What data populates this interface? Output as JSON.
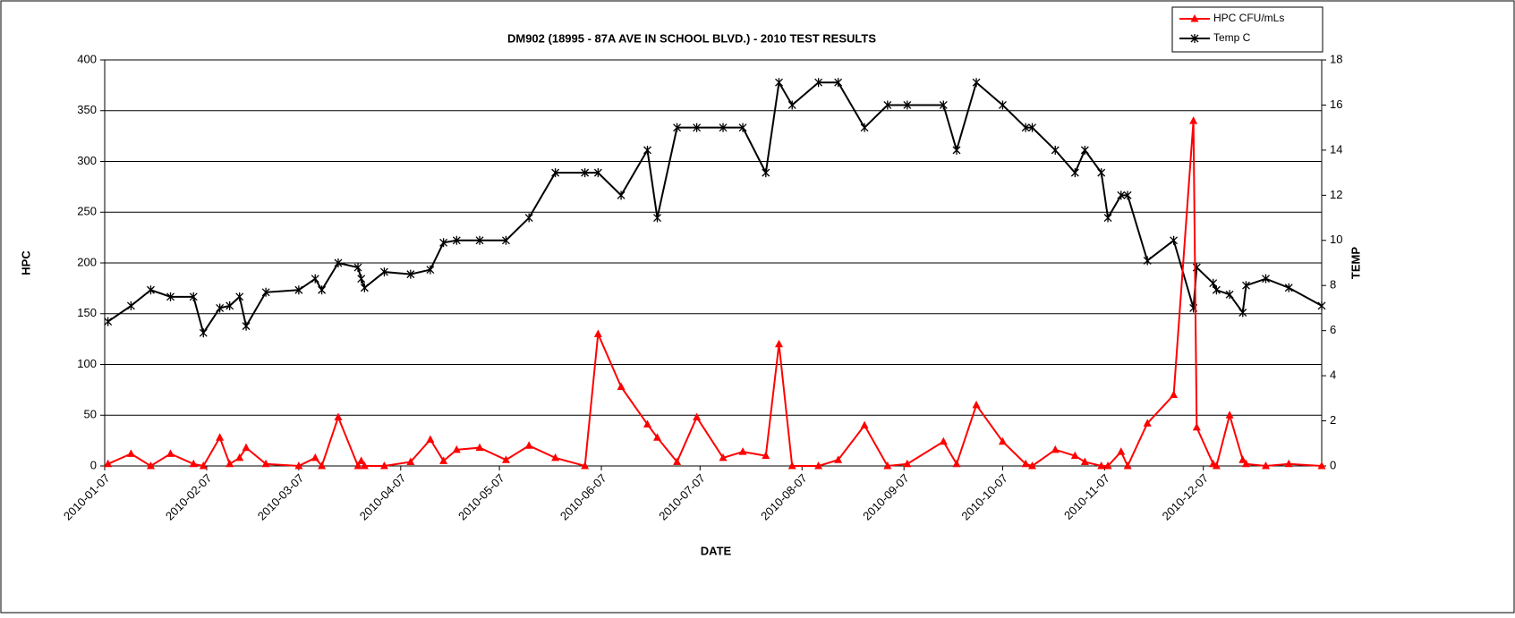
{
  "chart_data": {
    "type": "line",
    "title": "DM902 (18995 - 87A AVE IN SCHOOL BLVD.) - 2010 TEST RESULTS",
    "xlabel": "DATE",
    "ylabel": "HPC",
    "y2label": "TEMP",
    "x": [
      "2010-01-08",
      "2010-01-15",
      "2010-01-21",
      "2010-01-27",
      "2010-02-03",
      "2010-02-06",
      "2010-02-11",
      "2010-02-14",
      "2010-02-17",
      "2010-02-19",
      "2010-02-25",
      "2010-03-07",
      "2010-03-12",
      "2010-03-14",
      "2010-03-19",
      "2010-03-25",
      "2010-03-26",
      "2010-03-27",
      "2010-04-02",
      "2010-04-10",
      "2010-04-16",
      "2010-04-20",
      "2010-04-24",
      "2010-05-01",
      "2010-05-09",
      "2010-05-16",
      "2010-05-24",
      "2010-06-02",
      "2010-06-06",
      "2010-06-13",
      "2010-06-21",
      "2010-06-24",
      "2010-06-30",
      "2010-07-06",
      "2010-07-14",
      "2010-07-20",
      "2010-07-27",
      "2010-07-31",
      "2010-08-04",
      "2010-08-12",
      "2010-08-18",
      "2010-08-26",
      "2010-09-02",
      "2010-09-08",
      "2010-09-19",
      "2010-09-23",
      "2010-09-29",
      "2010-10-07",
      "2010-10-14",
      "2010-10-16",
      "2010-10-23",
      "2010-10-29",
      "2010-11-01",
      "2010-11-06",
      "2010-11-08",
      "2010-11-12",
      "2010-11-14",
      "2010-11-20",
      "2010-11-28",
      "2010-12-04",
      "2010-12-05",
      "2010-12-10",
      "2010-12-11",
      "2010-12-15",
      "2010-12-19",
      "2010-12-20",
      "2010-12-26",
      "2011-01-02",
      "2011-01-12"
    ],
    "series": [
      {
        "name": "HPC CFU/mLs",
        "color": "#ff0000",
        "marker": "triangle",
        "values": [
          2,
          12,
          0,
          12,
          2,
          0,
          28,
          2,
          8,
          18,
          2,
          0,
          8,
          0,
          48,
          0,
          5,
          0,
          0,
          4,
          26,
          5,
          16,
          18,
          6,
          20,
          8,
          0,
          130,
          78,
          41,
          28,
          4,
          48,
          8,
          14,
          10,
          120,
          0,
          0,
          6,
          40,
          0,
          2,
          24,
          2,
          60,
          24,
          2,
          0,
          16,
          10,
          4,
          0,
          0,
          14,
          0,
          42,
          70,
          340,
          38,
          2,
          0,
          50,
          6,
          2,
          0,
          2,
          0
        ]
      },
      {
        "name": "Temp C",
        "color": "#000000",
        "marker": "star",
        "axis": "y2",
        "values": [
          6.4,
          7.1,
          7.8,
          7.5,
          7.5,
          5.9,
          7,
          7.1,
          7.5,
          6.2,
          7.7,
          7.8,
          8.3,
          7.8,
          9,
          8.8,
          8.3,
          7.9,
          8.6,
          8.5,
          8.7,
          9.9,
          10,
          10,
          10,
          11,
          13,
          13,
          13,
          12,
          14,
          11,
          15,
          15,
          15,
          15,
          13,
          17,
          16,
          17,
          17,
          15,
          16,
          16,
          16,
          14,
          17,
          16,
          15,
          15,
          14,
          13,
          14,
          13,
          11,
          12,
          12,
          9.1,
          10,
          7,
          8.8,
          8.1,
          7.8,
          7.6,
          6.8,
          8,
          8.3,
          7.9,
          7.1
        ]
      }
    ],
    "xlim": [
      "2010-01-07",
      "2011-01-12"
    ],
    "xticks": [
      "2010-01-07",
      "2010-02-07",
      "2010-03-07",
      "2010-04-07",
      "2010-05-07",
      "2010-06-07",
      "2010-07-07",
      "2010-08-07",
      "2010-09-07",
      "2010-10-07",
      "2010-11-07",
      "2010-12-07"
    ],
    "ylim": [
      0,
      400
    ],
    "yticks": [
      0,
      50,
      100,
      150,
      200,
      250,
      300,
      350,
      400
    ],
    "y2lim": [
      0,
      18
    ],
    "y2ticks": [
      0,
      2,
      4,
      6,
      8,
      10,
      12,
      14,
      16,
      18
    ],
    "grid": true,
    "legend": "upper right"
  }
}
